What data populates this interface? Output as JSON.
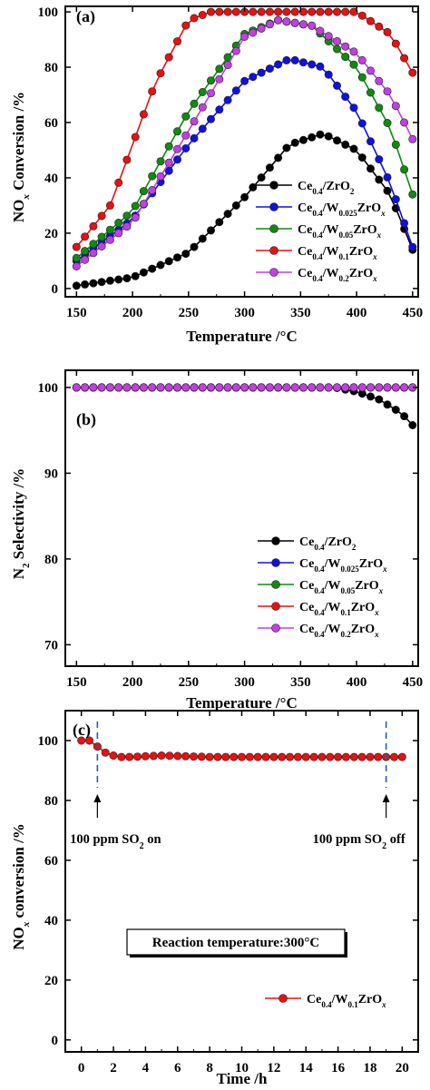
{
  "panels": [
    {
      "label": "(a)",
      "xlabel": "Temperature /°C",
      "ylabel_html": "NO<tspan baseline-shift='sub' font-size='11' font-style='italic'>x</tspan> Conversion /%",
      "xlim": [
        140,
        455
      ],
      "ylim": [
        -3,
        102
      ],
      "xticks": [
        150,
        200,
        250,
        300,
        350,
        400,
        450
      ],
      "yticks": [
        0,
        20,
        40,
        60,
        80,
        100
      ]
    },
    {
      "label": "(b)",
      "xlabel": "Temperature /°C",
      "ylabel_html": "N<tspan baseline-shift='sub' font-size='11'>2</tspan> Selectivity /%",
      "xlim": [
        140,
        455
      ],
      "ylim": [
        67.5,
        102
      ],
      "xticks": [
        150,
        200,
        250,
        300,
        350,
        400,
        450
      ],
      "yticks": [
        70,
        80,
        90,
        100
      ]
    },
    {
      "label": "(c)",
      "xlabel": "Time /h",
      "ylabel_html": "NO<tspan baseline-shift='sub' font-size='11' font-style='italic'>x</tspan> conversion /%",
      "xlim": [
        -1,
        21
      ],
      "ylim": [
        -4,
        110
      ],
      "xticks": [
        0,
        2,
        4,
        6,
        8,
        10,
        12,
        14,
        16,
        18,
        20
      ],
      "yticks": [
        0,
        20,
        40,
        60,
        80,
        100
      ],
      "annotations": [
        {
          "text_html": "100 ppm SO<tspan baseline-shift='sub' font-size='10'>2</tspan> on",
          "x": 1
        },
        {
          "text_html": "100 ppm SO<tspan baseline-shift='sub' font-size='10'>2</tspan> off",
          "x": 19
        }
      ],
      "boxed_note": "Reaction temperature:300°C"
    }
  ],
  "legend_items": [
    {
      "name_html": "Ce<tspan baseline-shift='sub' font-size='9'>0.4</tspan>/ZrO<tspan baseline-shift='sub' font-size='9'>2</tspan>",
      "color": "#000000"
    },
    {
      "name_html": "Ce<tspan baseline-shift='sub' font-size='9'>0.4</tspan>/W<tspan baseline-shift='sub' font-size='9'>0.025</tspan>ZrO<tspan baseline-shift='sub' font-size='9' font-style='italic'>x</tspan>",
      "color": "#1010e0"
    },
    {
      "name_html": "Ce<tspan baseline-shift='sub' font-size='9'>0.4</tspan>/W<tspan baseline-shift='sub' font-size='9'>0.05</tspan>ZrO<tspan baseline-shift='sub' font-size='9' font-style='italic'>x</tspan>",
      "color": "#108a10"
    },
    {
      "name_html": "Ce<tspan baseline-shift='sub' font-size='9'>0.4</tspan>/W<tspan baseline-shift='sub' font-size='9'>0.1</tspan>ZrO<tspan baseline-shift='sub' font-size='9' font-style='italic'>x</tspan>",
      "color": "#e81010"
    },
    {
      "name_html": "Ce<tspan baseline-shift='sub' font-size='9'>0.4</tspan>/W<tspan baseline-shift='sub' font-size='9'>0.2</tspan>ZrO<tspan baseline-shift='sub' font-size='9' font-style='italic'>x</tspan>",
      "color": "#c040e0"
    }
  ],
  "chart_data": [
    {
      "type": "line",
      "title": "(a)",
      "xlabel": "Temperature /°C",
      "ylabel": "NOx Conversion /%",
      "x_range": [
        150,
        450
      ],
      "ylim": [
        0,
        100
      ],
      "series": [
        {
          "name": "Ce0.4/ZrO2",
          "x_pts": [
            150,
            200,
            250,
            300,
            340,
            370,
            400,
            430,
            450
          ],
          "y_pts": [
            1,
            4,
            13,
            33,
            52,
            56,
            50,
            34,
            14
          ]
        },
        {
          "name": "Ce0.4/W0.025ZrOx",
          "x_pts": [
            150,
            200,
            250,
            300,
            340,
            370,
            400,
            430,
            450
          ],
          "y_pts": [
            10,
            25,
            52,
            75,
            83,
            80,
            64,
            38,
            15
          ]
        },
        {
          "name": "Ce0.4/W0.05ZrOx",
          "x_pts": [
            150,
            200,
            250,
            300,
            330,
            360,
            400,
            430,
            450
          ],
          "y_pts": [
            11,
            28,
            64,
            92,
            97,
            95,
            80,
            58,
            34
          ]
        },
        {
          "name": "Ce0.4/W0.1ZrOx",
          "x_pts": [
            150,
            180,
            200,
            220,
            250,
            270,
            300,
            400,
            430,
            450
          ],
          "y_pts": [
            15,
            30,
            52,
            74,
            97,
            100,
            100,
            100,
            92,
            78
          ]
        },
        {
          "name": "Ce0.4/W0.2ZrOx",
          "x_pts": [
            150,
            200,
            250,
            300,
            330,
            360,
            400,
            430,
            450
          ],
          "y_pts": [
            8,
            24,
            57,
            91,
            97,
            95,
            85,
            70,
            54
          ]
        }
      ]
    },
    {
      "type": "line",
      "title": "(b)",
      "xlabel": "Temperature /°C",
      "ylabel": "N2 Selectivity /%",
      "x_range": [
        150,
        450
      ],
      "ylim": [
        70,
        100
      ],
      "series": [
        {
          "name": "Ce0.4/ZrO2",
          "x_pts": [
            150,
            380,
            400,
            420,
            440,
            450
          ],
          "y_pts": [
            100,
            100,
            99.5,
            98.6,
            97,
            95.6
          ]
        },
        {
          "name": "Ce0.4/W0.025ZrOx",
          "x_pts": [
            150,
            450
          ],
          "y_pts": [
            100,
            100
          ]
        },
        {
          "name": "Ce0.4/W0.05ZrOx",
          "x_pts": [
            150,
            450
          ],
          "y_pts": [
            100,
            100
          ]
        },
        {
          "name": "Ce0.4/W0.1ZrOx",
          "x_pts": [
            150,
            450
          ],
          "y_pts": [
            100,
            100
          ]
        },
        {
          "name": "Ce0.4/W0.2ZrOx",
          "x_pts": [
            150,
            450
          ],
          "y_pts": [
            100,
            100
          ]
        }
      ]
    },
    {
      "type": "line",
      "title": "(c)",
      "xlabel": "Time /h",
      "ylabel": "NOx conversion /%",
      "x_range": [
        0,
        20
      ],
      "ylim": [
        0,
        100
      ],
      "series": [
        {
          "name": "Ce0.4/W0.1ZrOx",
          "x_pts": [
            0,
            0.5,
            1,
            1.5,
            2,
            2.5,
            3,
            5,
            8,
            12,
            16,
            19,
            20
          ],
          "y_pts": [
            100,
            100,
            98,
            96,
            95,
            94.5,
            94.5,
            95,
            94.5,
            94.5,
            94.5,
            94.5,
            94.5
          ]
        }
      ]
    }
  ]
}
